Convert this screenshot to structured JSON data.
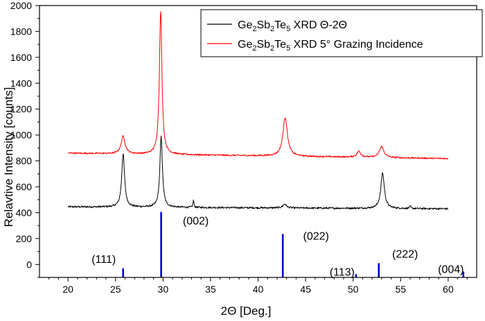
{
  "chart_data": {
    "type": "line",
    "xlabel": "2Θ [Deg.]",
    "ylabel": "Relavtive Intensity [counts]",
    "xlim": [
      17,
      63
    ],
    "ylim": [
      -100,
      2000
    ],
    "x_ticks": [
      20,
      25,
      30,
      35,
      40,
      45,
      50,
      55,
      60
    ],
    "y_ticks": [
      0,
      200,
      400,
      600,
      800,
      1000,
      1200,
      1400,
      1600,
      1800,
      2000
    ],
    "grid": false,
    "legend_position": "top-right",
    "series": [
      {
        "name": "Ge2Sb2Te5 XRD Θ-2Θ",
        "color": "#000000",
        "baseline": 445,
        "baseline_end": 430,
        "noise": 7,
        "x_range": [
          20,
          60
        ],
        "peaks": [
          {
            "x": 25.8,
            "height": 410,
            "width": 0.18
          },
          {
            "x": 29.8,
            "height": 545,
            "width": 0.16
          },
          {
            "x": 33.2,
            "height": 55,
            "width": 0.06
          },
          {
            "x": 42.8,
            "height": 30,
            "width": 0.22
          },
          {
            "x": 53.1,
            "height": 275,
            "width": 0.22
          },
          {
            "x": 56.0,
            "height": 15,
            "width": 0.1
          }
        ]
      },
      {
        "name": "Ge2Sb2Te5 XRD 5° Grazing Incidence",
        "color": "#ff0000",
        "baseline": 860,
        "baseline_end": 818,
        "noise": 6,
        "x_range": [
          20,
          60
        ],
        "peaks": [
          {
            "x": 25.8,
            "height": 135,
            "width": 0.25
          },
          {
            "x": 29.75,
            "height": 1110,
            "width": 0.16
          },
          {
            "x": 42.85,
            "height": 300,
            "width": 0.28
          },
          {
            "x": 50.6,
            "height": 45,
            "width": 0.25
          },
          {
            "x": 53.0,
            "height": 85,
            "width": 0.28
          }
        ]
      }
    ],
    "reference_lines": {
      "color": "#0000cc",
      "items": [
        {
          "x": 25.8,
          "top": -30,
          "label": "(111)"
        },
        {
          "x": 29.8,
          "top": 405,
          "label": "(002)"
        },
        {
          "x": 42.6,
          "top": 235,
          "label": "(022)"
        },
        {
          "x": 50.3,
          "top": -75,
          "label": "(113)"
        },
        {
          "x": 52.7,
          "top": 10,
          "label": "(222)"
        },
        {
          "x": 61.6,
          "top": -55,
          "label": "(004)"
        }
      ]
    }
  },
  "legend": {
    "entries": [
      {
        "formula": [
          "Ge",
          "2",
          "Sb",
          "2",
          "Te",
          "5"
        ],
        "suffix": " XRD Θ-2Θ",
        "color": "#000000"
      },
      {
        "formula": [
          "Ge",
          "2",
          "Sb",
          "2",
          "Te",
          "5"
        ],
        "suffix": " XRD 5° Grazing Incidence",
        "color": "#ff0000"
      }
    ]
  }
}
